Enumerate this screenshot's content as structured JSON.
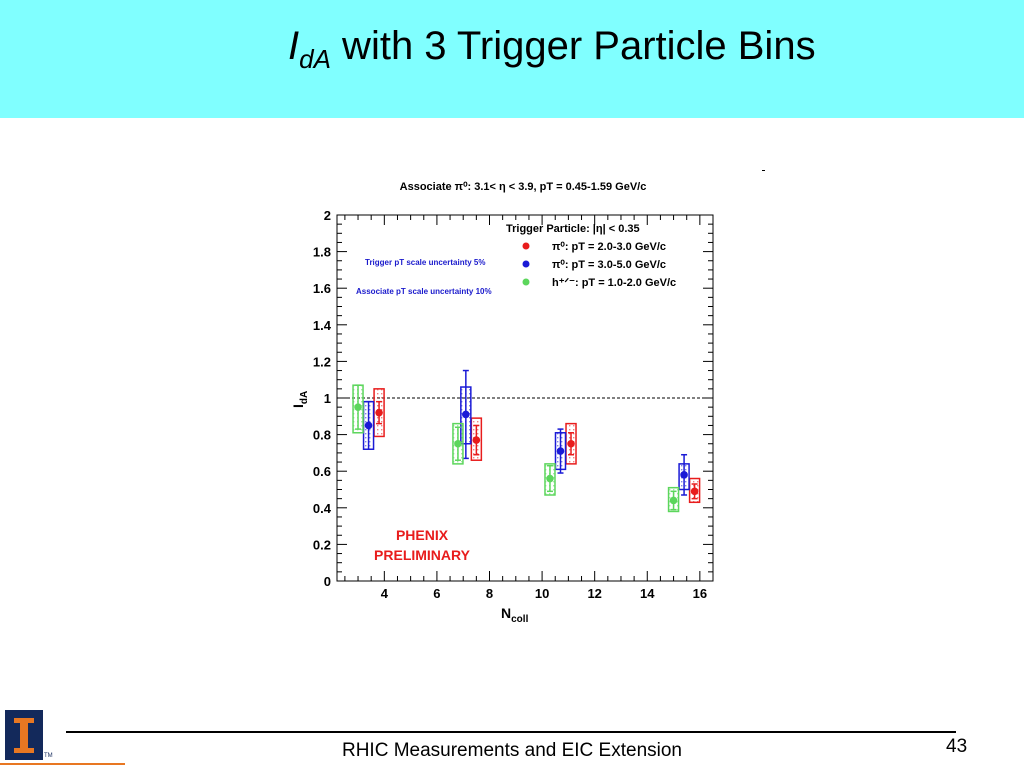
{
  "slide": {
    "title_symbol": "I",
    "title_subscript": "dA",
    "title_rest": " with 3 Trigger Particle Bins",
    "footer": "RHIC Measurements and EIC Extension",
    "page_number": "43",
    "logo_tm": "TM"
  },
  "colors": {
    "title_band": "#80ffff",
    "red": "#e81c1c",
    "blue": "#1a1ad6",
    "green": "#5cd65c",
    "annotation_blue": "#1a1acc",
    "phenix_red": "#e81c1c",
    "logo_navy": "#13295b",
    "logo_orange": "#e87722"
  },
  "chart_data": {
    "type": "scatter",
    "title": "Associate π⁰: 3.1< η < 3.9, pT = 0.45-1.59 GeV/c",
    "xlabel": "N",
    "xlabel_sub": "coll",
    "ylabel": "I",
    "ylabel_sub": "dA",
    "xlim": [
      2.2,
      16.5
    ],
    "ylim": [
      0,
      2
    ],
    "x_ticks": [
      "4",
      "6",
      "8",
      "10",
      "12",
      "14",
      "16"
    ],
    "y_ticks": [
      "0",
      "0.2",
      "0.4",
      "0.6",
      "0.8",
      "1",
      "1.2",
      "1.4",
      "1.6",
      "1.8",
      "2"
    ],
    "grid": false,
    "reference_line_y": 1,
    "legend_header": "Trigger Particle: |η| < 0.35",
    "legend_position": "top-right",
    "annotations": [
      "Trigger pT scale uncertainty 5%",
      "Associate pT scale uncertainty 10%"
    ],
    "watermark": [
      "PHENIX",
      "PRELIMINARY"
    ],
    "series": [
      {
        "name": "π⁰: pT = 2.0-3.0 GeV/c",
        "color": "red",
        "points": [
          {
            "x": 3.8,
            "y": 0.92,
            "stat": 0.06,
            "sys_lo": 0.79,
            "sys_hi": 1.05
          },
          {
            "x": 7.5,
            "y": 0.77,
            "stat": 0.08,
            "sys_lo": 0.66,
            "sys_hi": 0.89
          },
          {
            "x": 11.1,
            "y": 0.75,
            "stat": 0.06,
            "sys_lo": 0.64,
            "sys_hi": 0.86
          },
          {
            "x": 15.8,
            "y": 0.49,
            "stat": 0.04,
            "sys_lo": 0.43,
            "sys_hi": 0.56
          }
        ]
      },
      {
        "name": "π⁰: pT = 3.0-5.0 GeV/c",
        "color": "blue",
        "points": [
          {
            "x": 3.4,
            "y": 0.85,
            "stat": 0.13,
            "sys_lo": 0.72,
            "sys_hi": 0.98
          },
          {
            "x": 7.1,
            "y": 0.91,
            "stat": 0.24,
            "sys_lo": 0.75,
            "sys_hi": 1.06
          },
          {
            "x": 10.7,
            "y": 0.71,
            "stat": 0.12,
            "sys_lo": 0.61,
            "sys_hi": 0.81
          },
          {
            "x": 15.4,
            "y": 0.58,
            "stat": 0.11,
            "sys_lo": 0.5,
            "sys_hi": 0.64
          }
        ]
      },
      {
        "name": "h⁺ᐟ⁻: pT = 1.0-2.0 GeV/c",
        "color": "green",
        "points": [
          {
            "x": 3.0,
            "y": 0.95,
            "stat": 0.12,
            "sys_lo": 0.81,
            "sys_hi": 1.07
          },
          {
            "x": 6.8,
            "y": 0.75,
            "stat": 0.09,
            "sys_lo": 0.64,
            "sys_hi": 0.86
          },
          {
            "x": 10.3,
            "y": 0.56,
            "stat": 0.07,
            "sys_lo": 0.47,
            "sys_hi": 0.64
          },
          {
            "x": 15.0,
            "y": 0.44,
            "stat": 0.05,
            "sys_lo": 0.38,
            "sys_hi": 0.51
          }
        ]
      }
    ]
  }
}
